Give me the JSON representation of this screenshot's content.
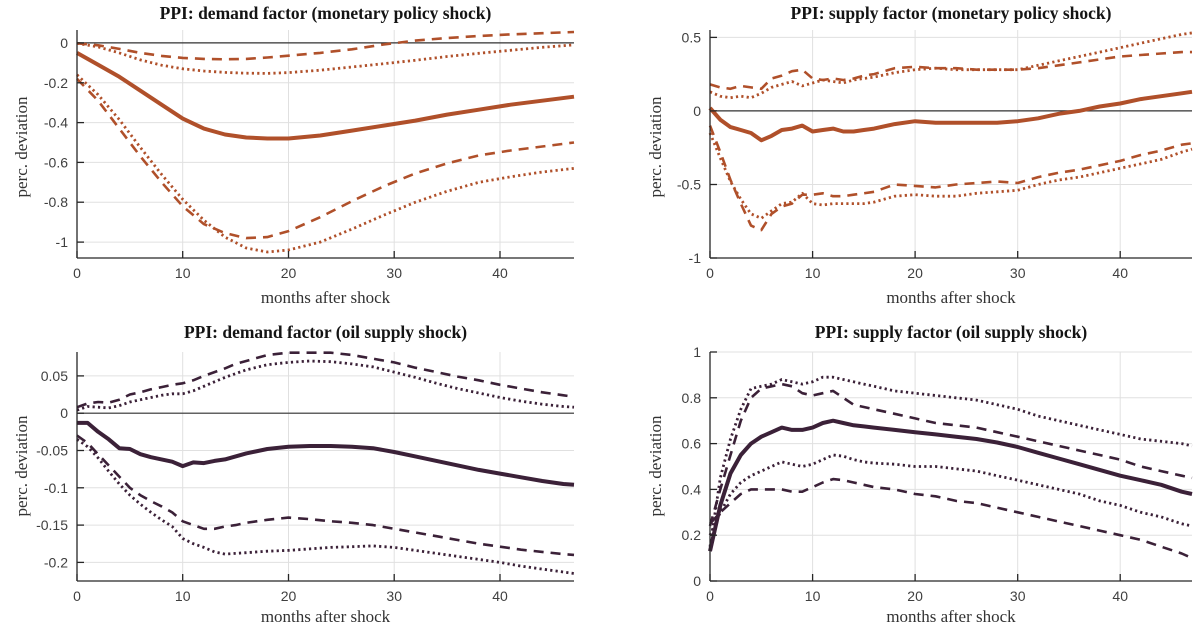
{
  "style": {
    "background": "#ffffff",
    "orange": "#b0502a",
    "purple": "#3b2138",
    "grid_color": "#e0e0e0",
    "axis_color": "#262626",
    "zero_line_color": "#333333",
    "tick_text_color": "#3f3f3f",
    "title_color": "#141414",
    "label_color": "#333333"
  },
  "chart_data": [
    {
      "type": "line",
      "title": "PPI: demand factor (monetary policy shock)",
      "xlabel": "months after shock",
      "ylabel": "perc. deviation",
      "xlim": [
        0,
        47
      ],
      "ylim": [
        -1.08,
        0.065
      ],
      "xticks": {
        "values": [
          0,
          10,
          20,
          30,
          40
        ],
        "labels": [
          "0",
          "10",
          "20",
          "30",
          "40"
        ]
      },
      "yticks": {
        "values": [
          0,
          -0.2,
          -0.4,
          -0.6,
          -0.8,
          -1
        ],
        "labels": [
          "0",
          "-0.2",
          "-0.4",
          "-0.6",
          "-0.8",
          "-1"
        ]
      },
      "zero_line": true,
      "grid": true,
      "legend": false,
      "color": "#b0502a",
      "x": [
        0,
        2,
        4,
        6,
        8,
        10,
        12,
        14,
        16,
        18,
        20,
        23,
        26,
        29,
        32,
        35,
        38,
        41,
        44,
        47
      ],
      "series": [
        {
          "name": "upper-band-dashed",
          "style": "dashed",
          "y": [
            -0.002,
            -0.012,
            -0.03,
            -0.05,
            -0.065,
            -0.075,
            -0.08,
            -0.082,
            -0.08,
            -0.073,
            -0.064,
            -0.05,
            -0.032,
            -0.008,
            0.012,
            0.025,
            0.035,
            0.043,
            0.049,
            0.055
          ]
        },
        {
          "name": "upper-band-dotted",
          "style": "dotted",
          "y": [
            -0.002,
            -0.02,
            -0.05,
            -0.085,
            -0.112,
            -0.13,
            -0.141,
            -0.148,
            -0.152,
            -0.153,
            -0.149,
            -0.137,
            -0.121,
            -0.104,
            -0.087,
            -0.068,
            -0.052,
            -0.037,
            -0.022,
            -0.01
          ]
        },
        {
          "name": "lower-band-dashed",
          "style": "dashed",
          "y": [
            -0.18,
            -0.29,
            -0.43,
            -0.57,
            -0.7,
            -0.82,
            -0.91,
            -0.955,
            -0.98,
            -0.975,
            -0.945,
            -0.875,
            -0.795,
            -0.72,
            -0.655,
            -0.605,
            -0.565,
            -0.54,
            -0.52,
            -0.5
          ]
        },
        {
          "name": "lower-band-dotted",
          "style": "dotted",
          "y": [
            -0.16,
            -0.26,
            -0.385,
            -0.525,
            -0.66,
            -0.785,
            -0.89,
            -0.975,
            -1.03,
            -1.05,
            -1.04,
            -1.0,
            -0.935,
            -0.865,
            -0.8,
            -0.745,
            -0.7,
            -0.672,
            -0.648,
            -0.63
          ]
        },
        {
          "name": "point-estimate",
          "style": "solid",
          "y": [
            -0.05,
            -0.11,
            -0.17,
            -0.24,
            -0.31,
            -0.38,
            -0.43,
            -0.46,
            -0.475,
            -0.48,
            -0.48,
            -0.465,
            -0.44,
            -0.415,
            -0.39,
            -0.36,
            -0.335,
            -0.31,
            -0.29,
            -0.27
          ]
        }
      ]
    },
    {
      "type": "line",
      "title": "PPI: supply factor (monetary policy shock)",
      "xlabel": "months after shock",
      "ylabel": "perc. deviation",
      "xlim": [
        0,
        47
      ],
      "ylim": [
        -1.0,
        0.55
      ],
      "xticks": {
        "values": [
          0,
          10,
          20,
          30,
          40
        ],
        "labels": [
          "0",
          "10",
          "20",
          "30",
          "40"
        ]
      },
      "yticks": {
        "values": [
          0.5,
          0,
          -0.5,
          -1
        ],
        "labels": [
          "0.5",
          "0",
          "-0.5",
          "-1"
        ]
      },
      "zero_line": true,
      "grid": true,
      "legend": false,
      "color": "#b0502a",
      "x": [
        0,
        1,
        2,
        3,
        4,
        5,
        6,
        7,
        8,
        9,
        10,
        11,
        12,
        13,
        14,
        15,
        16,
        18,
        20,
        22,
        24,
        26,
        28,
        30,
        32,
        34,
        36,
        38,
        40,
        42,
        44,
        46,
        47
      ],
      "series": [
        {
          "name": "upper-band-dashed",
          "style": "dashed",
          "y": [
            0.18,
            0.16,
            0.15,
            0.17,
            0.16,
            0.15,
            0.22,
            0.24,
            0.27,
            0.28,
            0.22,
            0.21,
            0.22,
            0.21,
            0.22,
            0.24,
            0.25,
            0.29,
            0.3,
            0.29,
            0.29,
            0.28,
            0.28,
            0.28,
            0.29,
            0.31,
            0.33,
            0.35,
            0.37,
            0.38,
            0.39,
            0.4,
            0.4
          ]
        },
        {
          "name": "upper-band-dotted",
          "style": "dotted",
          "y": [
            0.13,
            0.1,
            0.09,
            0.1,
            0.09,
            0.12,
            0.16,
            0.18,
            0.2,
            0.17,
            0.19,
            0.21,
            0.2,
            0.19,
            0.21,
            0.22,
            0.23,
            0.26,
            0.28,
            0.29,
            0.28,
            0.28,
            0.28,
            0.28,
            0.31,
            0.34,
            0.37,
            0.4,
            0.43,
            0.46,
            0.49,
            0.52,
            0.53
          ]
        },
        {
          "name": "lower-band-dashed",
          "style": "dashed",
          "y": [
            -0.1,
            -0.28,
            -0.47,
            -0.63,
            -0.78,
            -0.81,
            -0.7,
            -0.65,
            -0.63,
            -0.57,
            -0.57,
            -0.56,
            -0.58,
            -0.58,
            -0.57,
            -0.56,
            -0.55,
            -0.5,
            -0.51,
            -0.52,
            -0.5,
            -0.49,
            -0.48,
            -0.49,
            -0.45,
            -0.42,
            -0.4,
            -0.37,
            -0.34,
            -0.3,
            -0.27,
            -0.23,
            -0.22
          ]
        },
        {
          "name": "lower-band-dotted",
          "style": "dotted",
          "y": [
            -0.15,
            -0.32,
            -0.48,
            -0.6,
            -0.7,
            -0.73,
            -0.68,
            -0.63,
            -0.62,
            -0.56,
            -0.63,
            -0.64,
            -0.63,
            -0.63,
            -0.63,
            -0.63,
            -0.62,
            -0.58,
            -0.57,
            -0.58,
            -0.58,
            -0.56,
            -0.55,
            -0.54,
            -0.5,
            -0.47,
            -0.45,
            -0.42,
            -0.39,
            -0.36,
            -0.33,
            -0.28,
            -0.26
          ]
        },
        {
          "name": "point-estimate",
          "style": "solid",
          "y": [
            0.02,
            -0.06,
            -0.11,
            -0.13,
            -0.15,
            -0.2,
            -0.17,
            -0.13,
            -0.12,
            -0.1,
            -0.14,
            -0.13,
            -0.12,
            -0.14,
            -0.14,
            -0.13,
            -0.12,
            -0.09,
            -0.07,
            -0.08,
            -0.08,
            -0.08,
            -0.08,
            -0.07,
            -0.05,
            -0.02,
            0.0,
            0.03,
            0.05,
            0.08,
            0.1,
            0.12,
            0.13
          ]
        }
      ]
    },
    {
      "type": "line",
      "title": "PPI: demand factor (oil supply shock)",
      "xlabel": "months after shock",
      "ylabel": "perc. deviation",
      "xlim": [
        0,
        47
      ],
      "ylim": [
        -0.225,
        0.082
      ],
      "xticks": {
        "values": [
          0,
          10,
          20,
          30,
          40
        ],
        "labels": [
          "0",
          "10",
          "20",
          "30",
          "40"
        ]
      },
      "yticks": {
        "values": [
          0.05,
          0,
          -0.05,
          -0.1,
          -0.15,
          -0.2
        ],
        "labels": [
          "0.05",
          "0",
          "-0.05",
          "-0.1",
          "-0.15",
          "-0.2"
        ]
      },
      "zero_line": true,
      "grid": true,
      "legend": false,
      "color": "#3b2138",
      "x": [
        0,
        1,
        2,
        3,
        4,
        5,
        6,
        7,
        8,
        9,
        10,
        11,
        12,
        13,
        14,
        15,
        16,
        18,
        20,
        22,
        24,
        26,
        28,
        30,
        32,
        34,
        36,
        38,
        40,
        42,
        44,
        46,
        47
      ],
      "series": [
        {
          "name": "upper-band-dashed",
          "style": "dashed",
          "y": [
            0.008,
            0.013,
            0.015,
            0.014,
            0.018,
            0.025,
            0.028,
            0.032,
            0.035,
            0.038,
            0.04,
            0.044,
            0.05,
            0.055,
            0.06,
            0.066,
            0.07,
            0.078,
            0.081,
            0.081,
            0.081,
            0.078,
            0.073,
            0.068,
            0.061,
            0.055,
            0.049,
            0.044,
            0.038,
            0.033,
            0.028,
            0.024,
            0.022
          ]
        },
        {
          "name": "upper-band-dotted",
          "style": "dotted",
          "y": [
            0.004,
            0.009,
            0.008,
            0.007,
            0.01,
            0.015,
            0.018,
            0.021,
            0.024,
            0.026,
            0.026,
            0.03,
            0.036,
            0.042,
            0.048,
            0.053,
            0.058,
            0.065,
            0.068,
            0.07,
            0.069,
            0.066,
            0.062,
            0.055,
            0.048,
            0.04,
            0.033,
            0.027,
            0.021,
            0.016,
            0.012,
            0.009,
            0.008
          ]
        },
        {
          "name": "lower-band-dashed",
          "style": "dashed",
          "y": [
            -0.03,
            -0.04,
            -0.055,
            -0.07,
            -0.085,
            -0.1,
            -0.11,
            -0.118,
            -0.125,
            -0.133,
            -0.145,
            -0.15,
            -0.155,
            -0.155,
            -0.152,
            -0.15,
            -0.147,
            -0.143,
            -0.14,
            -0.142,
            -0.145,
            -0.147,
            -0.15,
            -0.155,
            -0.16,
            -0.165,
            -0.17,
            -0.175,
            -0.179,
            -0.183,
            -0.186,
            -0.189,
            -0.19
          ]
        },
        {
          "name": "lower-band-dotted",
          "style": "dotted",
          "y": [
            -0.035,
            -0.045,
            -0.06,
            -0.078,
            -0.095,
            -0.11,
            -0.122,
            -0.133,
            -0.143,
            -0.152,
            -0.168,
            -0.175,
            -0.18,
            -0.186,
            -0.189,
            -0.188,
            -0.187,
            -0.185,
            -0.184,
            -0.182,
            -0.18,
            -0.179,
            -0.178,
            -0.18,
            -0.184,
            -0.188,
            -0.192,
            -0.196,
            -0.2,
            -0.205,
            -0.209,
            -0.213,
            -0.215
          ]
        },
        {
          "name": "point-estimate",
          "style": "solid",
          "y": [
            -0.013,
            -0.013,
            -0.025,
            -0.035,
            -0.047,
            -0.048,
            -0.055,
            -0.059,
            -0.062,
            -0.065,
            -0.071,
            -0.066,
            -0.067,
            -0.064,
            -0.062,
            -0.058,
            -0.054,
            -0.048,
            -0.045,
            -0.044,
            -0.044,
            -0.045,
            -0.047,
            -0.052,
            -0.058,
            -0.064,
            -0.07,
            -0.076,
            -0.081,
            -0.086,
            -0.091,
            -0.095,
            -0.096
          ]
        }
      ]
    },
    {
      "type": "line",
      "title": "PPI: supply factor (oil supply shock)",
      "xlabel": "months after shock",
      "ylabel": "perc. deviation",
      "xlim": [
        0,
        47
      ],
      "ylim": [
        0,
        1
      ],
      "xticks": {
        "values": [
          0,
          10,
          20,
          30,
          40
        ],
        "labels": [
          "0",
          "10",
          "20",
          "30",
          "40"
        ]
      },
      "yticks": {
        "values": [
          0,
          0.2,
          0.4,
          0.6,
          0.8,
          1
        ],
        "labels": [
          "0",
          "0.2",
          "0.4",
          "0.6",
          "0.8",
          "1"
        ]
      },
      "zero_line": false,
      "grid": true,
      "legend": false,
      "color": "#3b2138",
      "x": [
        0,
        1,
        2,
        3,
        4,
        5,
        6,
        7,
        8,
        9,
        10,
        11,
        12,
        13,
        14,
        15,
        16,
        18,
        20,
        22,
        24,
        26,
        28,
        30,
        32,
        34,
        36,
        38,
        40,
        42,
        44,
        46,
        47
      ],
      "series": [
        {
          "name": "upper-band-dotted",
          "style": "dotted",
          "y": [
            0.15,
            0.45,
            0.62,
            0.75,
            0.84,
            0.85,
            0.86,
            0.88,
            0.87,
            0.86,
            0.87,
            0.89,
            0.89,
            0.88,
            0.87,
            0.86,
            0.85,
            0.83,
            0.82,
            0.81,
            0.8,
            0.79,
            0.77,
            0.75,
            0.72,
            0.7,
            0.68,
            0.66,
            0.64,
            0.62,
            0.61,
            0.6,
            0.59
          ]
        },
        {
          "name": "upper-band-dashed",
          "style": "dashed",
          "y": [
            0.24,
            0.4,
            0.55,
            0.7,
            0.8,
            0.84,
            0.85,
            0.86,
            0.85,
            0.82,
            0.81,
            0.82,
            0.83,
            0.8,
            0.77,
            0.76,
            0.75,
            0.73,
            0.71,
            0.69,
            0.68,
            0.67,
            0.65,
            0.63,
            0.61,
            0.59,
            0.57,
            0.55,
            0.53,
            0.5,
            0.48,
            0.46,
            0.45
          ]
        },
        {
          "name": "lower-band-dotted",
          "style": "dotted",
          "y": [
            0.2,
            0.3,
            0.38,
            0.43,
            0.46,
            0.48,
            0.5,
            0.52,
            0.51,
            0.5,
            0.51,
            0.53,
            0.55,
            0.545,
            0.53,
            0.52,
            0.515,
            0.51,
            0.5,
            0.5,
            0.49,
            0.48,
            0.46,
            0.44,
            0.42,
            0.4,
            0.38,
            0.35,
            0.33,
            0.3,
            0.28,
            0.25,
            0.24
          ]
        },
        {
          "name": "lower-band-dashed",
          "style": "dashed",
          "y": [
            0.25,
            0.3,
            0.34,
            0.38,
            0.4,
            0.4,
            0.4,
            0.4,
            0.39,
            0.39,
            0.41,
            0.43,
            0.445,
            0.44,
            0.43,
            0.42,
            0.41,
            0.4,
            0.38,
            0.37,
            0.35,
            0.34,
            0.32,
            0.3,
            0.28,
            0.26,
            0.24,
            0.22,
            0.2,
            0.18,
            0.15,
            0.12,
            0.1
          ]
        },
        {
          "name": "point-estimate",
          "style": "solid",
          "y": [
            0.13,
            0.33,
            0.47,
            0.55,
            0.6,
            0.63,
            0.65,
            0.67,
            0.66,
            0.66,
            0.67,
            0.69,
            0.7,
            0.69,
            0.68,
            0.675,
            0.67,
            0.66,
            0.65,
            0.64,
            0.63,
            0.62,
            0.605,
            0.585,
            0.56,
            0.535,
            0.51,
            0.485,
            0.46,
            0.44,
            0.42,
            0.39,
            0.38
          ]
        }
      ]
    }
  ]
}
